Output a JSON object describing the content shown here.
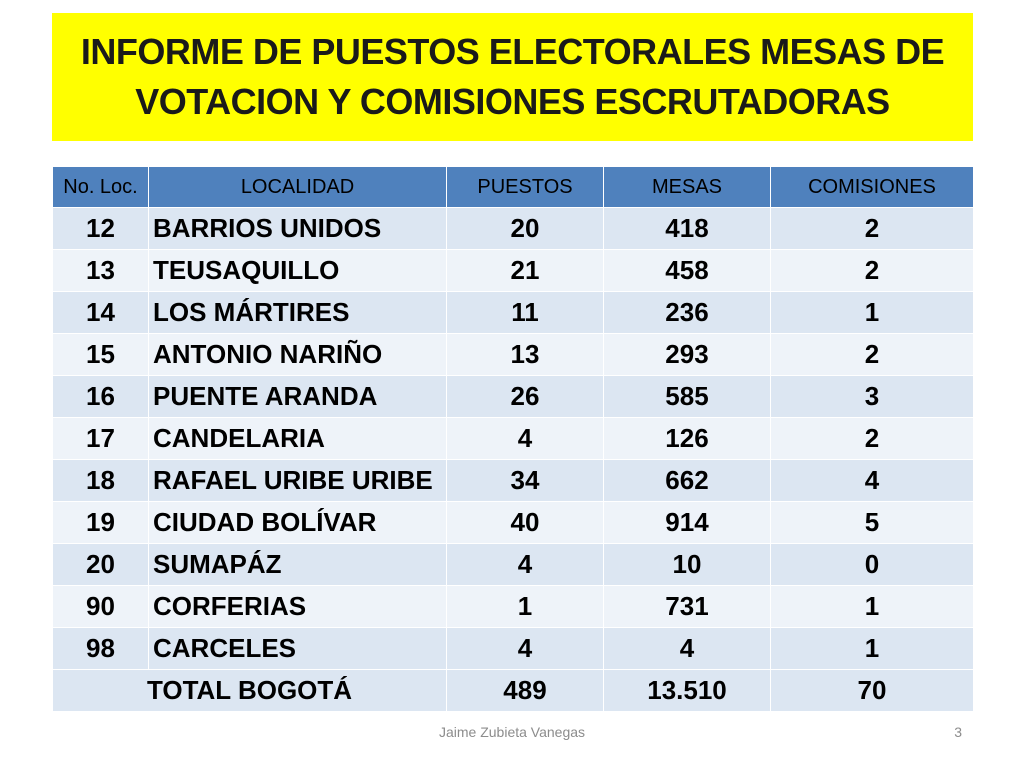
{
  "title": "INFORME DE PUESTOS ELECTORALES MESAS DE VOTACION Y COMISIONES ESCRUTADORAS",
  "table": {
    "headers": [
      "No. Loc.",
      "LOCALIDAD",
      "PUESTOS",
      "MESAS",
      "COMISIONES"
    ],
    "rows": [
      [
        "12",
        "BARRIOS UNIDOS",
        "20",
        "418",
        "2"
      ],
      [
        "13",
        "TEUSAQUILLO",
        "21",
        "458",
        "2"
      ],
      [
        "14",
        "LOS MÁRTIRES",
        "11",
        "236",
        "1"
      ],
      [
        "15",
        "ANTONIO NARIÑO",
        "13",
        "293",
        "2"
      ],
      [
        "16",
        "PUENTE ARANDA",
        "26",
        "585",
        "3"
      ],
      [
        "17",
        "CANDELARIA",
        "4",
        "126",
        "2"
      ],
      [
        "18",
        "RAFAEL URIBE URIBE",
        "34",
        "662",
        "4"
      ],
      [
        "19",
        "CIUDAD BOLÍVAR",
        "40",
        "914",
        "5"
      ],
      [
        "20",
        "SUMAPÁZ",
        "4",
        "10",
        "0"
      ],
      [
        "90",
        "CORFERIAS",
        "1",
        "731",
        "1"
      ],
      [
        "98",
        "CARCELES",
        "4",
        "4",
        "1"
      ]
    ],
    "total": {
      "label": "TOTAL BOGOTÁ",
      "puestos": "489",
      "mesas": "13.510",
      "comisiones": "70"
    }
  },
  "footer": {
    "author": "Jaime Zubieta Vanegas",
    "page": "3"
  },
  "colors": {
    "title_background": "#ffff00",
    "header_background": "#4f81bd",
    "row_odd": "#dce6f2",
    "row_even": "#eef3f9"
  }
}
